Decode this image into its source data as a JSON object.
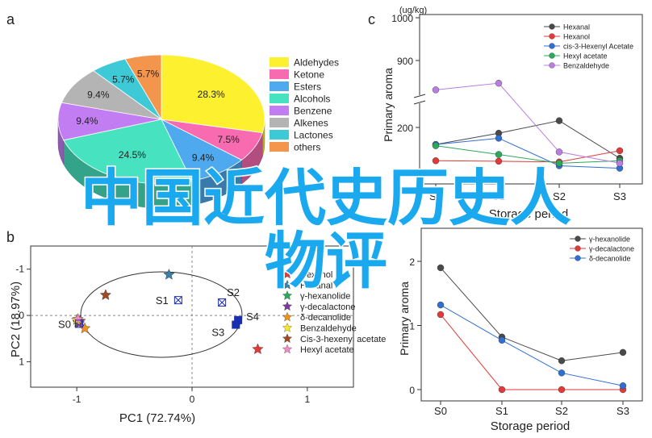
{
  "panel_letters": [
    "a",
    "b",
    "c"
  ],
  "watermark": [
    "中国近代史历史人",
    "物评"
  ],
  "chart_data": [
    {
      "id": "a",
      "type": "pie",
      "title": "",
      "legend_position": "right",
      "slices": [
        {
          "name": "Aldehydes",
          "value": 28.3,
          "label": "28.3%",
          "color": "#fdf12f"
        },
        {
          "name": "Ketone",
          "value": 7.5,
          "label": "7.5%",
          "color": "#f96bb1"
        },
        {
          "name": "Esters",
          "value": 9.4,
          "label": "9.4%",
          "color": "#4fa9ef"
        },
        {
          "name": "Alcohols",
          "value": 24.5,
          "label": "24.5%",
          "color": "#47e3c0"
        },
        {
          "name": "Benzene",
          "value": 9.4,
          "label": "9.4%",
          "color": "#c37df2"
        },
        {
          "name": "Alkenes",
          "value": 9.4,
          "label": "9.4%",
          "color": "#b4b4b4"
        },
        {
          "name": "Lactones",
          "value": 5.7,
          "label": "5.7%",
          "color": "#3ec9d6"
        },
        {
          "name": "others",
          "value": 5.7,
          "label": "5.7%",
          "color": "#f4954e"
        }
      ]
    },
    {
      "id": "b",
      "type": "scatter",
      "xlabel": "PC1 (72.74%)",
      "ylabel": "PC2 (18.97%)",
      "xlim": [
        -1.4,
        1.4
      ],
      "ylim": [
        -1.55,
        1.5
      ],
      "xticks": [
        "-1",
        "0",
        "1"
      ],
      "yticks": [
        "-1",
        "0",
        "1"
      ],
      "samples": [
        {
          "label": "S0",
          "x": -0.98,
          "y": -0.18
        },
        {
          "label": "S1",
          "x": -0.12,
          "y": 0.33
        },
        {
          "label": "S2",
          "x": 0.26,
          "y": 0.28
        },
        {
          "label": "S3",
          "x": 0.38,
          "y": -0.2
        },
        {
          "label": "S4",
          "x": 0.4,
          "y": -0.1
        }
      ],
      "compounds": [
        {
          "name": "Hexanol",
          "x": -0.97,
          "y": -0.12,
          "color": "#e23a3a"
        },
        {
          "name": "Hexanal",
          "x": -0.2,
          "y": 0.88,
          "color": "#3c7fa8"
        },
        {
          "name": "γ-hexanolide",
          "x": -0.99,
          "y": -0.15,
          "color": "#2ca85a"
        },
        {
          "name": "γ-decalactone",
          "x": -0.98,
          "y": -0.17,
          "color": "#7a3a9c"
        },
        {
          "name": "δ-decanolide",
          "x": -0.93,
          "y": -0.28,
          "color": "#f0911a"
        },
        {
          "name": "Benzaldehyde",
          "x": -1.0,
          "y": -0.1,
          "color": "#f8e62a"
        },
        {
          "name": "Cis-3-hexenyl acetate",
          "x": -0.75,
          "y": 0.44,
          "color": "#a04a22"
        },
        {
          "name": "Hexyl acetate",
          "x": -0.99,
          "y": -0.08,
          "color": "#f08cc2"
        },
        {
          "name": "",
          "x": 0.57,
          "y": -0.73,
          "color": "#e23a3a"
        }
      ]
    },
    {
      "id": "c",
      "type": "line",
      "xlabel": "Storage period",
      "ylabel": "Primary aroma",
      "unit_label": "(ug/kg)",
      "categories": [
        "S0",
        "S1",
        "S2",
        "S3"
      ],
      "yticks": [
        "200",
        "900",
        "1000"
      ],
      "axis_break": true,
      "legend_position": "top-right",
      "series": [
        {
          "name": "Hexanal",
          "color": "#4a4a4a",
          "values": [
            115,
            160,
            210,
            60
          ]
        },
        {
          "name": "Hexanol",
          "color": "#e23a3a",
          "values": [
            50,
            48,
            45,
            90
          ]
        },
        {
          "name": "cis-3-Hexenyl Acetate",
          "color": "#2f6fd1",
          "values": [
            115,
            140,
            30,
            20
          ]
        },
        {
          "name": "Hexyl acetate",
          "color": "#2ca85a",
          "values": [
            110,
            75,
            40,
            50
          ]
        },
        {
          "name": "Benzaldehyde",
          "color": "#b97ee0",
          "values": [
            830,
            360,
            85,
            40
          ]
        }
      ]
    },
    {
      "id": "d",
      "type": "line",
      "xlabel": "Storage period",
      "ylabel": "Primary aroma",
      "categories": [
        "S0",
        "S1",
        "S2",
        "S3"
      ],
      "ylim": [
        0,
        2.3
      ],
      "yticks": [
        "0",
        "1",
        "2"
      ],
      "legend_position": "top-right",
      "series": [
        {
          "name": "γ-hexanolide",
          "color": "#4a4a4a",
          "values": [
            1.9,
            0.82,
            0.45,
            0.58
          ]
        },
        {
          "name": "γ-decalactone",
          "color": "#e23a3a",
          "values": [
            1.17,
            0.0,
            0.0,
            0.0
          ]
        },
        {
          "name": "δ-decanolide",
          "color": "#2f6fd1",
          "values": [
            1.32,
            0.77,
            0.26,
            0.06
          ]
        }
      ]
    }
  ]
}
